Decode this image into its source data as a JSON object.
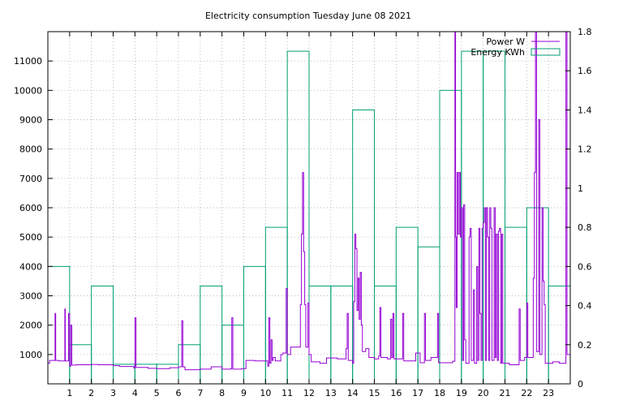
{
  "chart_data": {
    "type": "line",
    "title": "Electricity consumption Tuesday June 08 2021",
    "xlabel": "",
    "ylabel": "",
    "y2label": "",
    "xlim": [
      0,
      24
    ],
    "ylim": [
      0,
      12000
    ],
    "y2lim": [
      0,
      1.8
    ],
    "xticks": [
      1,
      2,
      3,
      4,
      5,
      6,
      7,
      8,
      9,
      10,
      11,
      12,
      13,
      14,
      15,
      16,
      17,
      18,
      19,
      20,
      21,
      22,
      23
    ],
    "yticks": [
      1000,
      2000,
      3000,
      4000,
      5000,
      6000,
      7000,
      8000,
      9000,
      10000,
      11000
    ],
    "y2ticks": [
      0,
      0.2,
      0.4,
      0.6,
      0.8,
      1,
      1.2,
      1.4,
      1.6,
      1.8
    ],
    "grid": true,
    "legend": "top-right",
    "series": [
      {
        "name": "Power W",
        "axis": "y",
        "style": "steps",
        "color": "#9400d3",
        "points": [
          [
            0,
            700
          ],
          [
            0.08,
            800
          ],
          [
            0.33,
            2400
          ],
          [
            0.36,
            800
          ],
          [
            0.5,
            780
          ],
          [
            0.78,
            2550
          ],
          [
            0.8,
            780
          ],
          [
            0.95,
            2400
          ],
          [
            1.0,
            600
          ],
          [
            1.05,
            2000
          ],
          [
            1.1,
            640
          ],
          [
            1.3,
            650
          ],
          [
            2.0,
            660
          ],
          [
            2.3,
            650
          ],
          [
            3.0,
            620
          ],
          [
            3.3,
            590
          ],
          [
            3.95,
            540
          ],
          [
            4.0,
            2250
          ],
          [
            4.05,
            560
          ],
          [
            4.6,
            530
          ],
          [
            5.0,
            520
          ],
          [
            5.6,
            550
          ],
          [
            6.0,
            580
          ],
          [
            6.15,
            2150
          ],
          [
            6.2,
            580
          ],
          [
            6.3,
            480
          ],
          [
            7.0,
            500
          ],
          [
            7.5,
            580
          ],
          [
            8.0,
            500
          ],
          [
            8.4,
            520
          ],
          [
            8.45,
            2250
          ],
          [
            8.5,
            500
          ],
          [
            8.9,
            520
          ],
          [
            9.1,
            800
          ],
          [
            9.5,
            780
          ],
          [
            10.0,
            780
          ],
          [
            10.1,
            600
          ],
          [
            10.15,
            2250
          ],
          [
            10.2,
            700
          ],
          [
            10.25,
            1500
          ],
          [
            10.3,
            800
          ],
          [
            10.35,
            900
          ],
          [
            10.45,
            780
          ],
          [
            10.7,
            1000
          ],
          [
            10.8,
            1050
          ],
          [
            10.95,
            3250
          ],
          [
            11.0,
            1000
          ],
          [
            11.15,
            1250
          ],
          [
            11.6,
            2700
          ],
          [
            11.65,
            5100
          ],
          [
            11.7,
            7200
          ],
          [
            11.75,
            4500
          ],
          [
            11.8,
            2700
          ],
          [
            11.85,
            1250
          ],
          [
            11.95,
            2750
          ],
          [
            12.0,
            1000
          ],
          [
            12.1,
            750
          ],
          [
            12.5,
            700
          ],
          [
            12.8,
            880
          ],
          [
            13.3,
            850
          ],
          [
            13.7,
            1200
          ],
          [
            13.75,
            2400
          ],
          [
            13.8,
            800
          ],
          [
            14.0,
            700
          ],
          [
            14.05,
            2800
          ],
          [
            14.1,
            5100
          ],
          [
            14.15,
            4600
          ],
          [
            14.2,
            2500
          ],
          [
            14.25,
            3600
          ],
          [
            14.3,
            2200
          ],
          [
            14.35,
            3800
          ],
          [
            14.4,
            2000
          ],
          [
            14.45,
            1100
          ],
          [
            14.6,
            1200
          ],
          [
            14.75,
            900
          ],
          [
            15.0,
            850
          ],
          [
            15.2,
            950
          ],
          [
            15.25,
            2600
          ],
          [
            15.3,
            900
          ],
          [
            15.6,
            850
          ],
          [
            15.75,
            2200
          ],
          [
            15.8,
            900
          ],
          [
            15.85,
            2400
          ],
          [
            15.9,
            850
          ],
          [
            16.3,
            2400
          ],
          [
            16.35,
            780
          ],
          [
            16.9,
            1050
          ],
          [
            17.1,
            720
          ],
          [
            17.3,
            2400
          ],
          [
            17.35,
            800
          ],
          [
            17.6,
            900
          ],
          [
            17.9,
            2400
          ],
          [
            17.95,
            720
          ],
          [
            18.4,
            720
          ],
          [
            18.6,
            770
          ],
          [
            18.7,
            12000
          ],
          [
            18.73,
            5000
          ],
          [
            18.76,
            2600
          ],
          [
            18.8,
            7200
          ],
          [
            18.85,
            5100
          ],
          [
            18.9,
            7200
          ],
          [
            18.95,
            5000
          ],
          [
            19.0,
            6000
          ],
          [
            19.05,
            800
          ],
          [
            19.1,
            6100
          ],
          [
            19.15,
            1500
          ],
          [
            19.2,
            700
          ],
          [
            19.35,
            5000
          ],
          [
            19.4,
            5300
          ],
          [
            19.45,
            800
          ],
          [
            19.55,
            3200
          ],
          [
            19.6,
            700
          ],
          [
            19.7,
            4000
          ],
          [
            19.75,
            800
          ],
          [
            19.8,
            5300
          ],
          [
            19.85,
            2400
          ],
          [
            19.9,
            800
          ],
          [
            19.95,
            5300
          ],
          [
            20.0,
            5500
          ],
          [
            20.05,
            6000
          ],
          [
            20.1,
            800
          ],
          [
            20.15,
            6000
          ],
          [
            20.2,
            5000
          ],
          [
            20.25,
            800
          ],
          [
            20.3,
            6000
          ],
          [
            20.35,
            5300
          ],
          [
            20.4,
            800
          ],
          [
            20.5,
            6000
          ],
          [
            20.55,
            900
          ],
          [
            20.6,
            5100
          ],
          [
            20.65,
            800
          ],
          [
            20.7,
            5200
          ],
          [
            20.75,
            5300
          ],
          [
            20.8,
            700
          ],
          [
            20.85,
            5100
          ],
          [
            20.9,
            700
          ],
          [
            21.2,
            650
          ],
          [
            21.65,
            2550
          ],
          [
            21.7,
            800
          ],
          [
            21.9,
            900
          ],
          [
            22.0,
            2750
          ],
          [
            22.05,
            900
          ],
          [
            22.3,
            3600
          ],
          [
            22.35,
            7200
          ],
          [
            22.4,
            12000
          ],
          [
            22.45,
            1100
          ],
          [
            22.55,
            9000
          ],
          [
            22.6,
            1000
          ],
          [
            22.7,
            6000
          ],
          [
            22.75,
            3500
          ],
          [
            22.8,
            2700
          ],
          [
            22.85,
            700
          ],
          [
            23.2,
            750
          ],
          [
            23.5,
            700
          ],
          [
            23.8,
            12000
          ],
          [
            23.85,
            1000
          ],
          [
            24.0,
            1000
          ]
        ]
      },
      {
        "name": "Energy KWh",
        "axis": "y2",
        "style": "boxes",
        "color": "#009e73",
        "bins": [
          [
            0,
            0.6
          ],
          [
            1,
            0.2
          ],
          [
            2,
            0.5
          ],
          [
            3,
            0.1
          ],
          [
            4,
            0.1
          ],
          [
            5,
            0.1
          ],
          [
            6,
            0.2
          ],
          [
            7,
            0.5
          ],
          [
            8,
            0.3
          ],
          [
            9,
            0.6
          ],
          [
            10,
            0.8
          ],
          [
            11,
            1.7
          ],
          [
            12,
            0.5
          ],
          [
            13,
            0.5
          ],
          [
            14,
            1.4
          ],
          [
            15,
            0.5
          ],
          [
            16,
            0.8
          ],
          [
            17,
            0.7
          ],
          [
            18,
            1.5
          ],
          [
            19,
            1.7
          ],
          [
            20,
            1.7
          ],
          [
            21,
            0.8
          ],
          [
            22,
            0.9
          ],
          [
            23,
            0.5
          ]
        ]
      }
    ]
  }
}
